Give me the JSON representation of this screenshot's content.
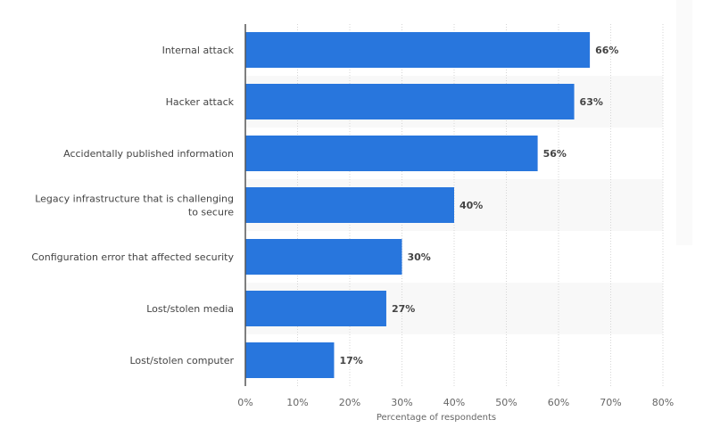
{
  "chart_data": {
    "type": "bar",
    "orientation": "horizontal",
    "categories": [
      "Internal attack",
      "Hacker attack",
      "Accidentally published information",
      "Legacy infrastructure that is challenging to secure",
      "Configuration error that affected security",
      "Lost/stolen media",
      "Lost/stolen computer"
    ],
    "category_lines": [
      [
        "Internal attack"
      ],
      [
        "Hacker attack"
      ],
      [
        "Accidentally published information"
      ],
      [
        "Legacy infrastructure that is challenging",
        "to secure"
      ],
      [
        "Configuration error that affected security"
      ],
      [
        "Lost/stolen media"
      ],
      [
        "Lost/stolen computer"
      ]
    ],
    "values": [
      66,
      63,
      56,
      40,
      30,
      27,
      17
    ],
    "data_labels": [
      "66%",
      "63%",
      "56%",
      "40%",
      "30%",
      "27%",
      "17%"
    ],
    "xlabel": "Percentage of respondents",
    "xlim": [
      0,
      80
    ],
    "xticks": [
      "0%",
      "10%",
      "20%",
      "30%",
      "40%",
      "50%",
      "60%",
      "70%",
      "80%"
    ],
    "grid": true,
    "bar_color": "#2876dd"
  }
}
